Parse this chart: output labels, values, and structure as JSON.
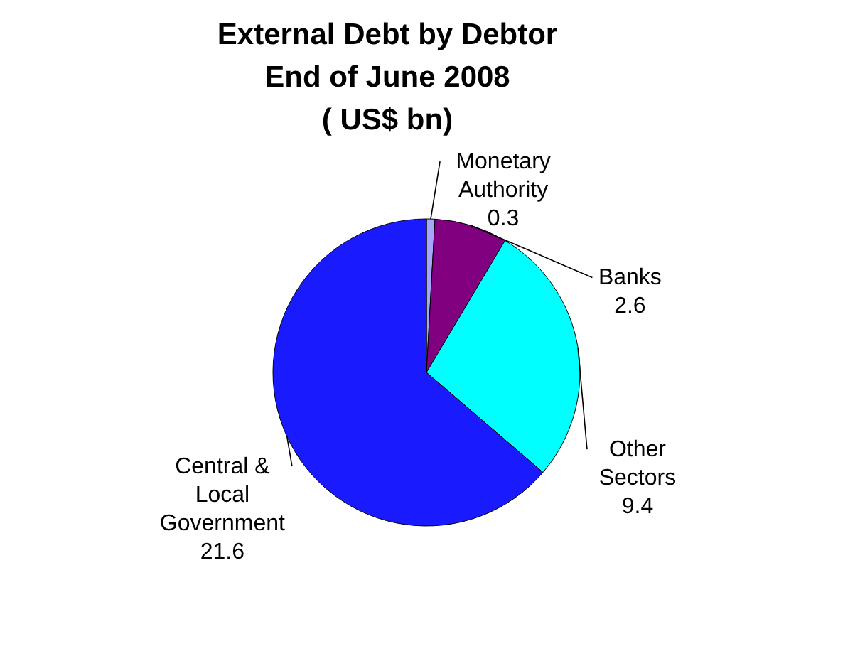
{
  "chart_data": {
    "type": "pie",
    "title": "External Debt by Debtor\nEnd of June 2008\n( US$ bn)",
    "categories": [
      "Monetary Authority",
      "Banks",
      "Other Sectors",
      "Central & Local Government"
    ],
    "values": [
      0.3,
      2.6,
      9.4,
      21.6
    ],
    "colors": [
      "#a6a6ff",
      "#800080",
      "#00ffff",
      "#1a1aff"
    ],
    "data_labels": true
  }
}
